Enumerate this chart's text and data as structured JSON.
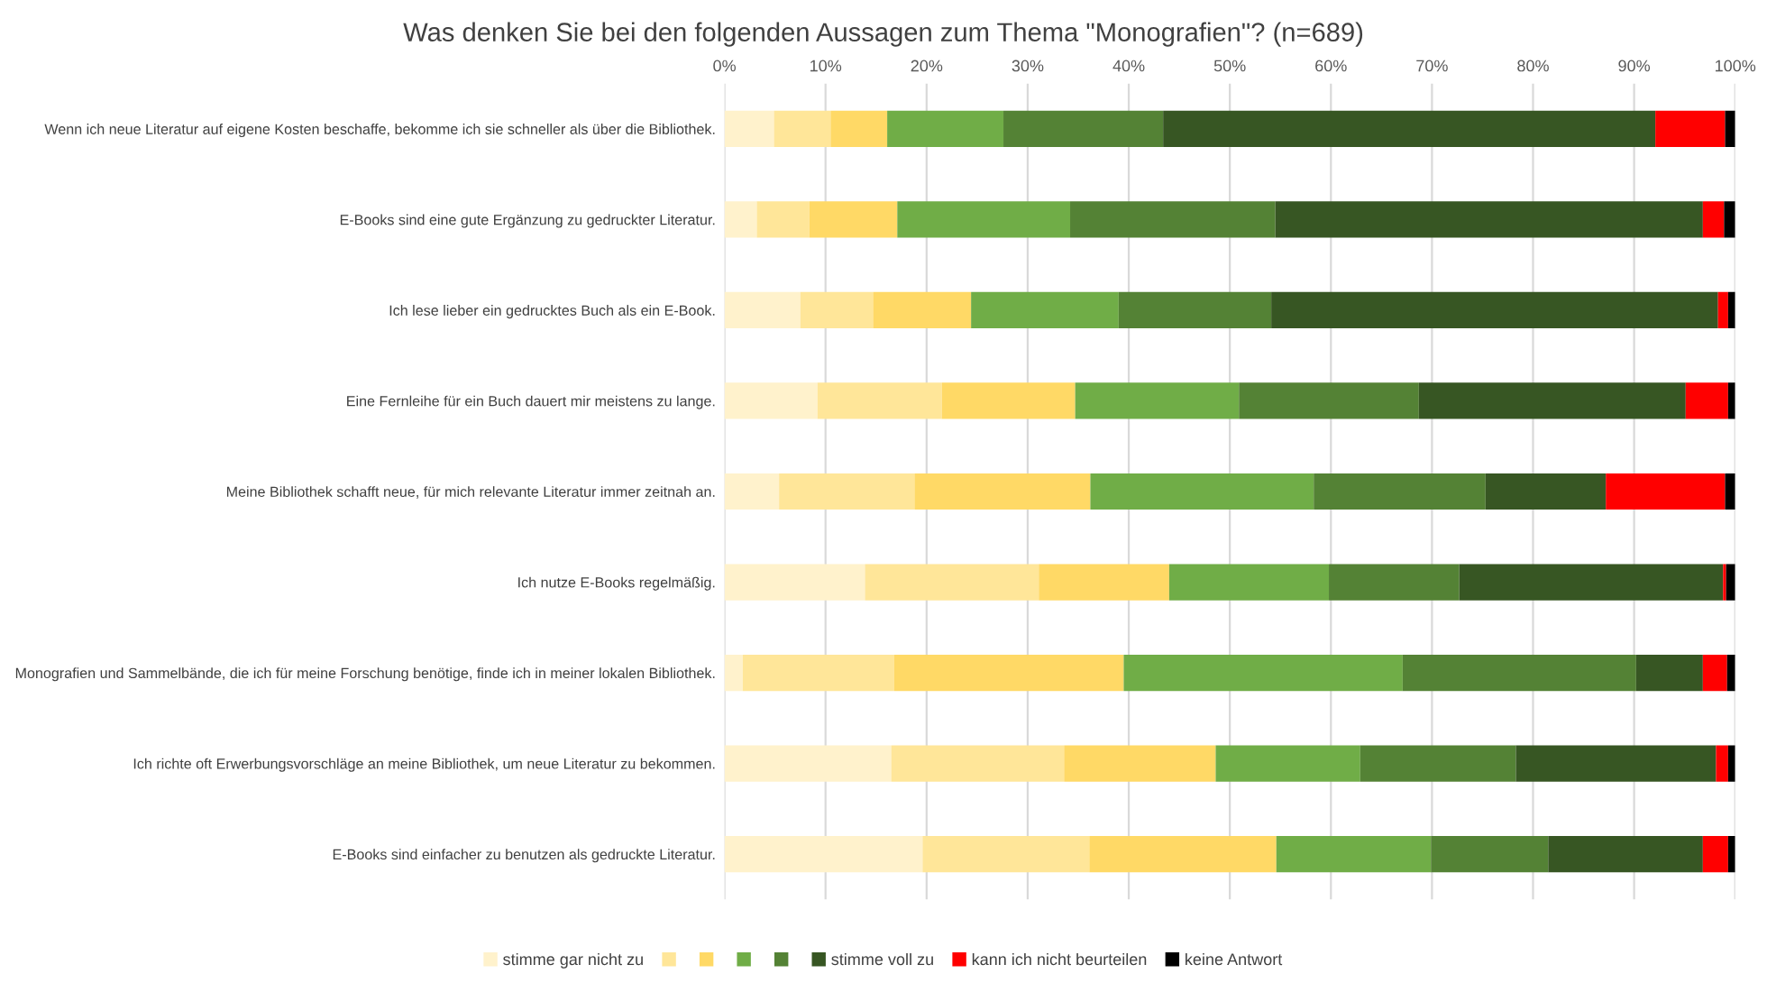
{
  "chart_data": {
    "type": "bar",
    "orientation": "horizontal",
    "stacked": true,
    "title": "Was denken Sie bei den folgenden Aussagen zum Thema \"Monografien\"? (n=689)",
    "categories": [
      "Wenn ich neue Literatur auf eigene Kosten beschaffe, bekomme ich sie schneller als über die Bibliothek.",
      "E-Books sind eine gute Ergänzung zu gedruckter Literatur.",
      "Ich lese lieber ein gedrucktes Buch als ein E-Book.",
      "Eine Fernleihe für ein Buch dauert mir meistens zu lange.",
      "Meine Bibliothek schafft neue, für mich relevante Literatur immer zeitnah an.",
      "Ich nutze E-Books regelmäßig.",
      "Monografien und Sammelbände, die ich für meine Forschung benötige, finde ich in meiner lokalen Bibliothek.",
      "Ich richte oft Erwerbungsvorschläge an meine Bibliothek, um neue Literatur zu bekommen.",
      "E-Books sind einfacher zu benutzen als gedruckte Literatur."
    ],
    "series": [
      {
        "name": "stimme gar nicht zu",
        "color": "#fff2cc",
        "values": [
          4.9,
          3.2,
          7.5,
          9.2,
          5.4,
          13.9,
          1.8,
          16.5,
          19.6
        ]
      },
      {
        "color": "#ffe699",
        "values": [
          5.6,
          5.2,
          7.2,
          12.3,
          13.4,
          17.2,
          15.0,
          17.1,
          16.5
        ]
      },
      {
        "color": "#ffd966",
        "values": [
          5.6,
          8.7,
          9.7,
          13.2,
          17.4,
          12.9,
          22.7,
          15.0,
          18.5
        ]
      },
      {
        "color": "#70ad47",
        "values": [
          11.5,
          17.1,
          14.6,
          16.2,
          22.1,
          15.8,
          27.6,
          14.3,
          15.3
        ]
      },
      {
        "color": "#548235",
        "values": [
          15.8,
          20.3,
          15.1,
          17.8,
          17.0,
          12.9,
          23.1,
          15.4,
          11.6
        ]
      },
      {
        "name": "stimme voll zu",
        "color": "#375623",
        "values": [
          48.7,
          42.3,
          44.2,
          26.4,
          11.9,
          26.1,
          6.6,
          19.8,
          15.3
        ]
      },
      {
        "name": "kann ich nicht beurteilen",
        "color": "#ff0000",
        "values": [
          6.9,
          2.1,
          1.0,
          4.2,
          11.8,
          0.3,
          2.4,
          1.2,
          2.5
        ]
      },
      {
        "name": "keine Antwort",
        "color": "#000000",
        "values": [
          1.0,
          1.1,
          0.7,
          0.7,
          1.0,
          0.9,
          0.8,
          0.7,
          0.7
        ]
      }
    ],
    "xlim": [
      0,
      100
    ],
    "xticks": [
      {
        "value": 0,
        "label": "0%"
      },
      {
        "value": 10,
        "label": "10%"
      },
      {
        "value": 20,
        "label": "20%"
      },
      {
        "value": 30,
        "label": "30%"
      },
      {
        "value": 40,
        "label": "40%"
      },
      {
        "value": 50,
        "label": "50%"
      },
      {
        "value": 60,
        "label": "60%"
      },
      {
        "value": 70,
        "label": "70%"
      },
      {
        "value": 80,
        "label": "80%"
      },
      {
        "value": 90,
        "label": "90%"
      },
      {
        "value": 100,
        "label": "100%"
      }
    ],
    "grid": "x",
    "legend": "bottom"
  }
}
